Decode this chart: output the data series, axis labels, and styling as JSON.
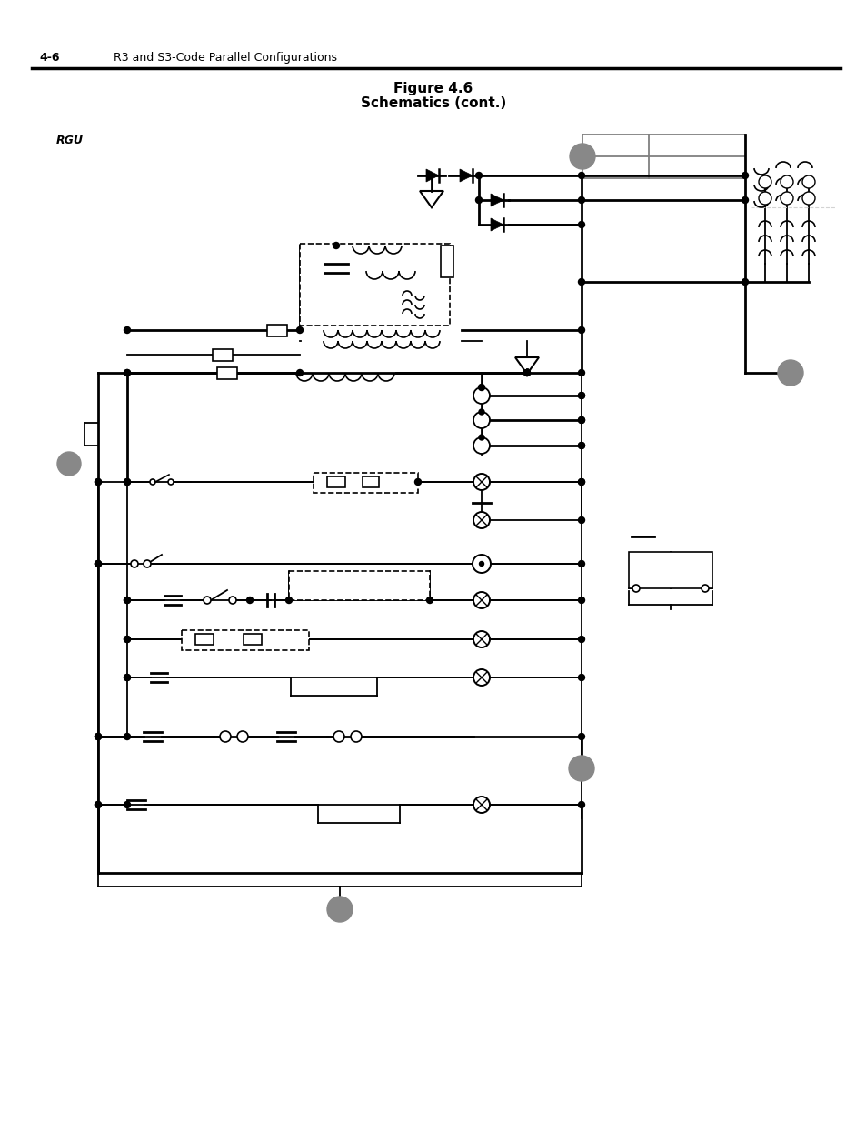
{
  "title_line1": "Figure 4.6",
  "title_line2": "Schematics (cont.)",
  "header_left": "4-6",
  "header_right": "R3 and S3-Code Parallel Configurations",
  "rgu_label": "RGU",
  "bg_color": "#ffffff",
  "gray_circle_color": "#888888",
  "figsize": [
    9.54,
    12.35
  ],
  "dpi": 100
}
